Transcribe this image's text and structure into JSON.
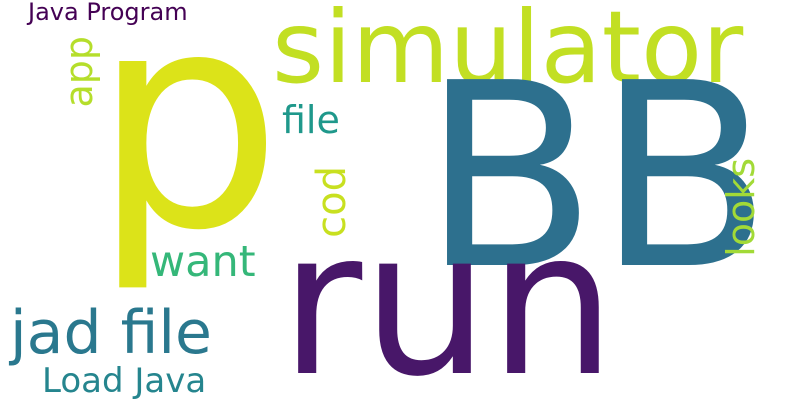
{
  "word_cloud": {
    "words": [
      {
        "key": "p",
        "text": "p",
        "color": "#dce319"
      },
      {
        "key": "simulator",
        "text": "simulator",
        "color": "#c2df23"
      },
      {
        "key": "bb",
        "text": "BB",
        "color": "#2d708e"
      },
      {
        "key": "run",
        "text": "run",
        "color": "#481769"
      },
      {
        "key": "java_program",
        "text": "Java Program",
        "color": "#440154"
      },
      {
        "key": "app",
        "text": "app",
        "color": "#b5de2b"
      },
      {
        "key": "file",
        "text": "file",
        "color": "#1f988b"
      },
      {
        "key": "cod",
        "text": "cod",
        "color": "#c8e020"
      },
      {
        "key": "want",
        "text": "want",
        "color": "#35b779"
      },
      {
        "key": "jad_file",
        "text": "jad file",
        "color": "#2a788e"
      },
      {
        "key": "load_java",
        "text": "Load Java",
        "color": "#25858e"
      },
      {
        "key": "looks",
        "text": "looks",
        "color": "#a2da37"
      }
    ]
  }
}
